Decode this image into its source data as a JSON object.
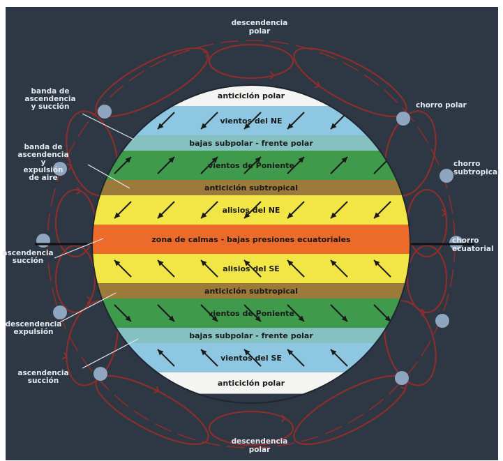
{
  "colors": {
    "background": "#2d3844",
    "frame": "#ffffff",
    "cell": "#8c2e2c",
    "bubble": "#8fa6c0",
    "arrow": "#1a1a1a",
    "pointer": "#e4e8ee"
  },
  "bands": [
    {
      "id": "polar-high-n",
      "label": "anticiclón polar",
      "color": "#f4f4f2"
    },
    {
      "id": "ne-winds-polar",
      "label": "vientos del NE",
      "color": "#8ec7e2",
      "arrow": "sw"
    },
    {
      "id": "subpolar-low-n",
      "label": "bajas subpolar - frente polar",
      "color": "#86c1c2"
    },
    {
      "id": "westerlies-n",
      "label": "vientos de Poniente",
      "color": "#3f9a4c",
      "arrow": "ne"
    },
    {
      "id": "subtropical-high-n",
      "label": "anticiclón subtropical",
      "color": "#9c7a3a"
    },
    {
      "id": "ne-trades",
      "label": "alisios del NE",
      "color": "#f2e646",
      "arrow": "sw"
    },
    {
      "id": "equatorial-low",
      "label": "zona de calmas - bajas presiones ecuatoriales",
      "color": "#ec6a2a"
    },
    {
      "id": "se-trades",
      "label": "alisios del SE",
      "color": "#f2e646",
      "arrow": "nw"
    },
    {
      "id": "subtropical-high-s",
      "label": "anticiclón subtropical",
      "color": "#9c7a3a"
    },
    {
      "id": "westerlies-s",
      "label": "vientos de Poniente",
      "color": "#3f9a4c",
      "arrow": "se"
    },
    {
      "id": "subpolar-low-s",
      "label": "bajas subpolar - frente polar",
      "color": "#86c1c2"
    },
    {
      "id": "se-winds-polar",
      "label": "vientos del SE",
      "color": "#8ec7e2",
      "arrow": "nw"
    },
    {
      "id": "polar-high-s",
      "label": "anticiclón polar",
      "color": "#f4f4f2"
    }
  ],
  "labels": {
    "top": [
      "descendencia",
      "polar"
    ],
    "bottom": [
      "descendencia",
      "polar"
    ],
    "left": [
      [
        "banda de",
        "ascendencia",
        "y succión"
      ],
      [
        "banda de",
        "ascendencia",
        "y",
        "expulsión",
        "de aire"
      ],
      [
        "ascendencia",
        "succión"
      ],
      [
        "descendencia",
        "expulsión"
      ],
      [
        "ascendencia",
        "succión"
      ]
    ],
    "right": [
      [
        "chorro polar"
      ],
      [
        "chorro",
        "subtropical"
      ],
      [
        "chorro",
        "ecuatorial"
      ]
    ]
  }
}
